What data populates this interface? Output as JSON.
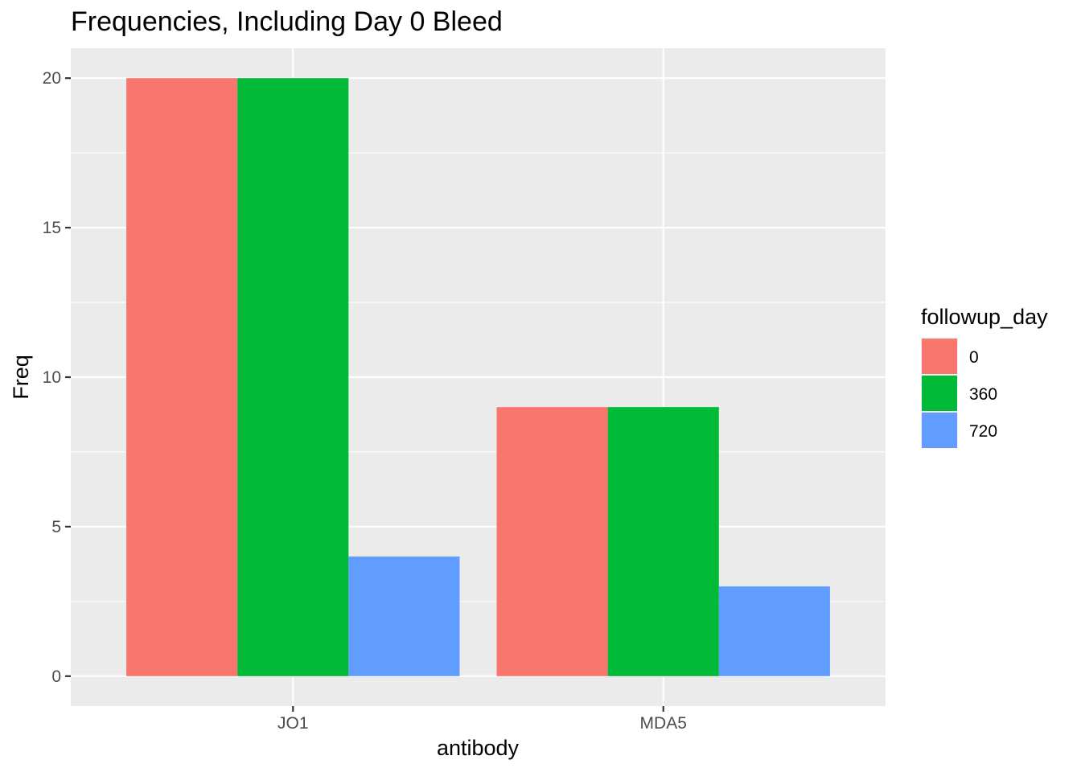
{
  "chart_data": {
    "type": "bar",
    "title": "Frequencies, Including Day 0 Bleed",
    "xlabel": "antibody",
    "ylabel": "Freq",
    "categories": [
      "JO1",
      "MDA5"
    ],
    "series": [
      {
        "name": "0",
        "values": [
          20,
          9
        ],
        "color": "#F8766D"
      },
      {
        "name": "360",
        "values": [
          20,
          9
        ],
        "color": "#00BA38"
      },
      {
        "name": "720",
        "values": [
          4,
          3
        ],
        "color": "#619CFF"
      }
    ],
    "ylim": [
      -1,
      21
    ],
    "yticks": [
      0,
      5,
      10,
      15,
      20
    ],
    "grid": true,
    "legend": {
      "title": "followup_day",
      "placement": "right"
    },
    "panel_background": "#EBEBEB",
    "grid_color": "#FFFFFF"
  }
}
